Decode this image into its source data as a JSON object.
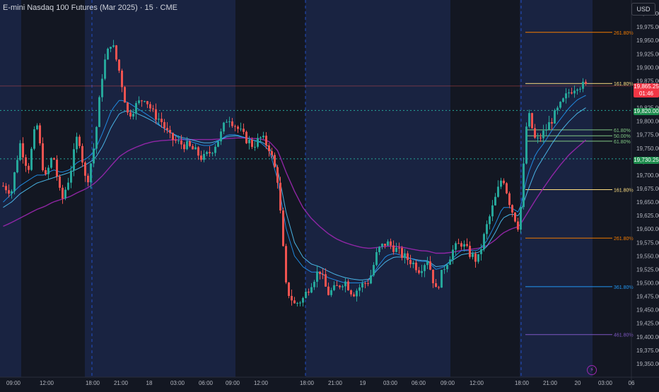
{
  "header": {
    "symbol_title": "E-mini Nasdaq 100 Futures (Mar 2025) · 15 · CME",
    "currency": "USD"
  },
  "colors": {
    "background": "#131722",
    "session_shade": "#192341",
    "up_candle": "#26a69a",
    "down_candle": "#ef5350",
    "ma_fast": "#2196f3",
    "ma_mid": "#4fc3f7",
    "ma_slow": "#9c27b0",
    "price_line": "#ef5350",
    "level_line": "#26a69a",
    "fib_orange": "#f57c00",
    "fib_yellow": "#ffe082",
    "fib_green": "#81c784",
    "fib_blue": "#2196f3",
    "fib_purple": "#7e57c2"
  },
  "chart_data": {
    "type": "candlestick",
    "title": "E-mini Nasdaq 100 Futures (Mar 2025) · 15 · CME",
    "ylim": [
      19325,
      20025
    ],
    "y_ticks": [
      "20,000.00",
      "19,975.00",
      "19,950.00",
      "19,925.00",
      "19,900.00",
      "19,875.00",
      "19,850.00",
      "19,825.00",
      "19,800.00",
      "19,775.00",
      "19,750.00",
      "19,725.00",
      "19,700.00",
      "19,675.00",
      "19,650.00",
      "19,625.00",
      "19,600.00",
      "19,575.00",
      "19,550.00",
      "19,525.00",
      "19,500.00",
      "19,475.00",
      "19,450.00",
      "19,425.00",
      "19,400.00",
      "19,375.00",
      "19,350.00"
    ],
    "x_ticks": [
      "09:00",
      "12:00",
      "18:00",
      "21:00",
      "18",
      "03:00",
      "06:00",
      "09:00",
      "12:00",
      "18:00",
      "21:00",
      "19",
      "03:00",
      "06:00",
      "09:00",
      "12:00",
      "18:00",
      "21:00",
      "20",
      "03:00",
      "06"
    ],
    "price_path": [
      19680,
      19670,
      19760,
      19710,
      19800,
      19690,
      19740,
      19650,
      19700,
      19780,
      19680,
      19760,
      19900,
      19950,
      19890,
      19810,
      19830,
      19845,
      19815,
      19800,
      19770,
      19760,
      19755,
      19745,
      19730,
      19745,
      19770,
      19810,
      19790,
      19770,
      19755,
      19770,
      19750,
      19690,
      19490,
      19460,
      19470,
      19500,
      19525,
      19480,
      19490,
      19505,
      19480,
      19495,
      19505,
      19560,
      19575,
      19565,
      19550,
      19540,
      19525,
      19545,
      19485,
      19530,
      19560,
      19575,
      19555,
      19540,
      19600,
      19650,
      19700,
      19640,
      19600,
      19820,
      19760,
      19780,
      19805,
      19830,
      19855,
      19868,
      19865
    ],
    "ma_fast": [
      19650,
      19665,
      19680,
      19690,
      19700,
      19700,
      19710,
      19705,
      19710,
      19725,
      19730,
      19745,
      19780,
      19820,
      19840,
      19835,
      19825,
      19815,
      19805,
      19790,
      19780,
      19770,
      19765,
      19760,
      19755,
      19755,
      19765,
      19775,
      19775,
      19770,
      19765,
      19760,
      19745,
      19690,
      19600,
      19550,
      19530,
      19520,
      19520,
      19510,
      19505,
      19500,
      19500,
      19500,
      19505,
      19530,
      19550,
      19555,
      19550,
      19545,
      19540,
      19540,
      19525,
      19530,
      19545,
      19560,
      19560,
      19560,
      19575,
      19605,
      19640,
      19640,
      19630,
      19700,
      19740,
      19760,
      19785,
      19805,
      19825,
      19840,
      19848
    ],
    "ma_mid": [
      19640,
      19650,
      19665,
      19675,
      19685,
      19690,
      19695,
      19700,
      19705,
      19712,
      19720,
      19730,
      19755,
      19790,
      19815,
      19820,
      19815,
      19808,
      19800,
      19790,
      19780,
      19772,
      19768,
      19764,
      19760,
      19760,
      19765,
      19772,
      19773,
      19770,
      19765,
      19762,
      19752,
      19710,
      19630,
      19575,
      19548,
      19535,
      19530,
      19522,
      19515,
      19510,
      19507,
      19505,
      19507,
      19525,
      19540,
      19548,
      19548,
      19545,
      19542,
      19541,
      19530,
      19532,
      19542,
      19552,
      19555,
      19556,
      19565,
      19590,
      19620,
      19628,
      19624,
      19670,
      19710,
      19735,
      19760,
      19782,
      19800,
      19815,
      19825
    ],
    "ma_slow": [
      19605,
      19612,
      19620,
      19628,
      19636,
      19642,
      19650,
      19655,
      19660,
      19668,
      19675,
      19685,
      19700,
      19718,
      19735,
      19745,
      19752,
      19758,
      19762,
      19764,
      19765,
      19766,
      19766,
      19766,
      19766,
      19766,
      19767,
      19768,
      19769,
      19769,
      19768,
      19767,
      19762,
      19745,
      19705,
      19670,
      19640,
      19620,
      19605,
      19592,
      19582,
      19575,
      19570,
      19566,
      19564,
      19566,
      19568,
      19568,
      19566,
      19563,
      19560,
      19559,
      19555,
      19555,
      19557,
      19560,
      19562,
      19564,
      19568,
      19578,
      19592,
      19600,
      19605,
      19630,
      19655,
      19678,
      19700,
      19720,
      19738,
      19752,
      19765
    ],
    "current_price": {
      "label": "19,865.25",
      "countdown": "01:46",
      "value": 19865.25
    },
    "horizontal_levels": [
      {
        "label": "19,820.00",
        "value": 19820
      },
      {
        "label": "19,730.25",
        "value": 19730.25
      }
    ],
    "fib_levels": [
      {
        "label": "261.80%",
        "value": 19965,
        "color": "#f57c00"
      },
      {
        "label": "161.80%",
        "value": 19870,
        "color": "#ffe082"
      },
      {
        "label": "61.80%",
        "value": 19784,
        "color": "#81c784"
      },
      {
        "label": "50.00%",
        "value": 19773,
        "color": "#81c784"
      },
      {
        "label": "61.80%",
        "value": 19763,
        "color": "#81c784"
      },
      {
        "label": "161.80%",
        "value": 19673,
        "color": "#ffe082"
      },
      {
        "label": "261.80%",
        "value": 19583,
        "color": "#f57c00"
      },
      {
        "label": "361.80%",
        "value": 19493,
        "color": "#2196f3"
      },
      {
        "label": "461.80%",
        "value": 19404,
        "color": "#7e57c2"
      }
    ]
  }
}
